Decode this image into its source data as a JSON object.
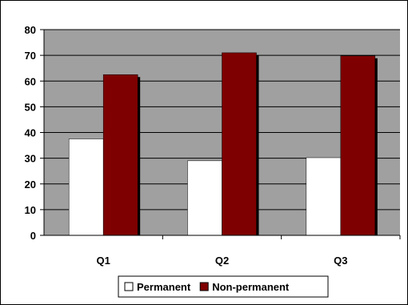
{
  "chart_data": {
    "type": "bar",
    "categories": [
      "Q1",
      "Q2",
      "Q3"
    ],
    "series": [
      {
        "name": "Permanent",
        "values": [
          37.5,
          29,
          30.2
        ],
        "color": "#ffffff"
      },
      {
        "name": "Non-permanent",
        "values": [
          62.5,
          71,
          69.8
        ],
        "color": "#7f0000"
      }
    ],
    "yticks": [
      "0",
      "10",
      "20",
      "30",
      "40",
      "50",
      "60",
      "70",
      "80"
    ],
    "ylim": [
      0,
      80
    ],
    "grid": true,
    "plot_background": "#a0a0a0",
    "legend_position": "bottom",
    "title": "",
    "xlabel": "",
    "ylabel": ""
  }
}
